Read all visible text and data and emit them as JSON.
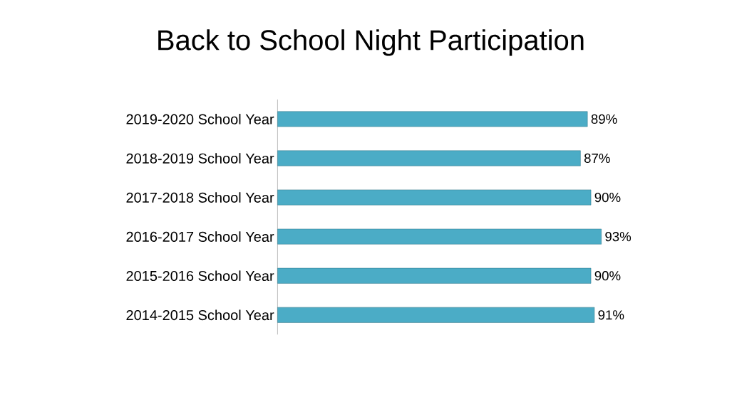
{
  "chart_data": {
    "type": "bar",
    "orientation": "horizontal",
    "title": "Back to School Night Participation",
    "categories": [
      "2019-2020 School Year",
      "2018-2019 School Year",
      "2017-2018 School Year",
      "2016-2017 School Year",
      "2015-2016 School Year",
      "2014-2015 School Year"
    ],
    "values": [
      89,
      87,
      90,
      93,
      90,
      91
    ],
    "value_labels": [
      "89%",
      "87%",
      "90%",
      "93%",
      "90%",
      "91%"
    ],
    "color": "#4bacc6",
    "tick_labels": "y"
  }
}
